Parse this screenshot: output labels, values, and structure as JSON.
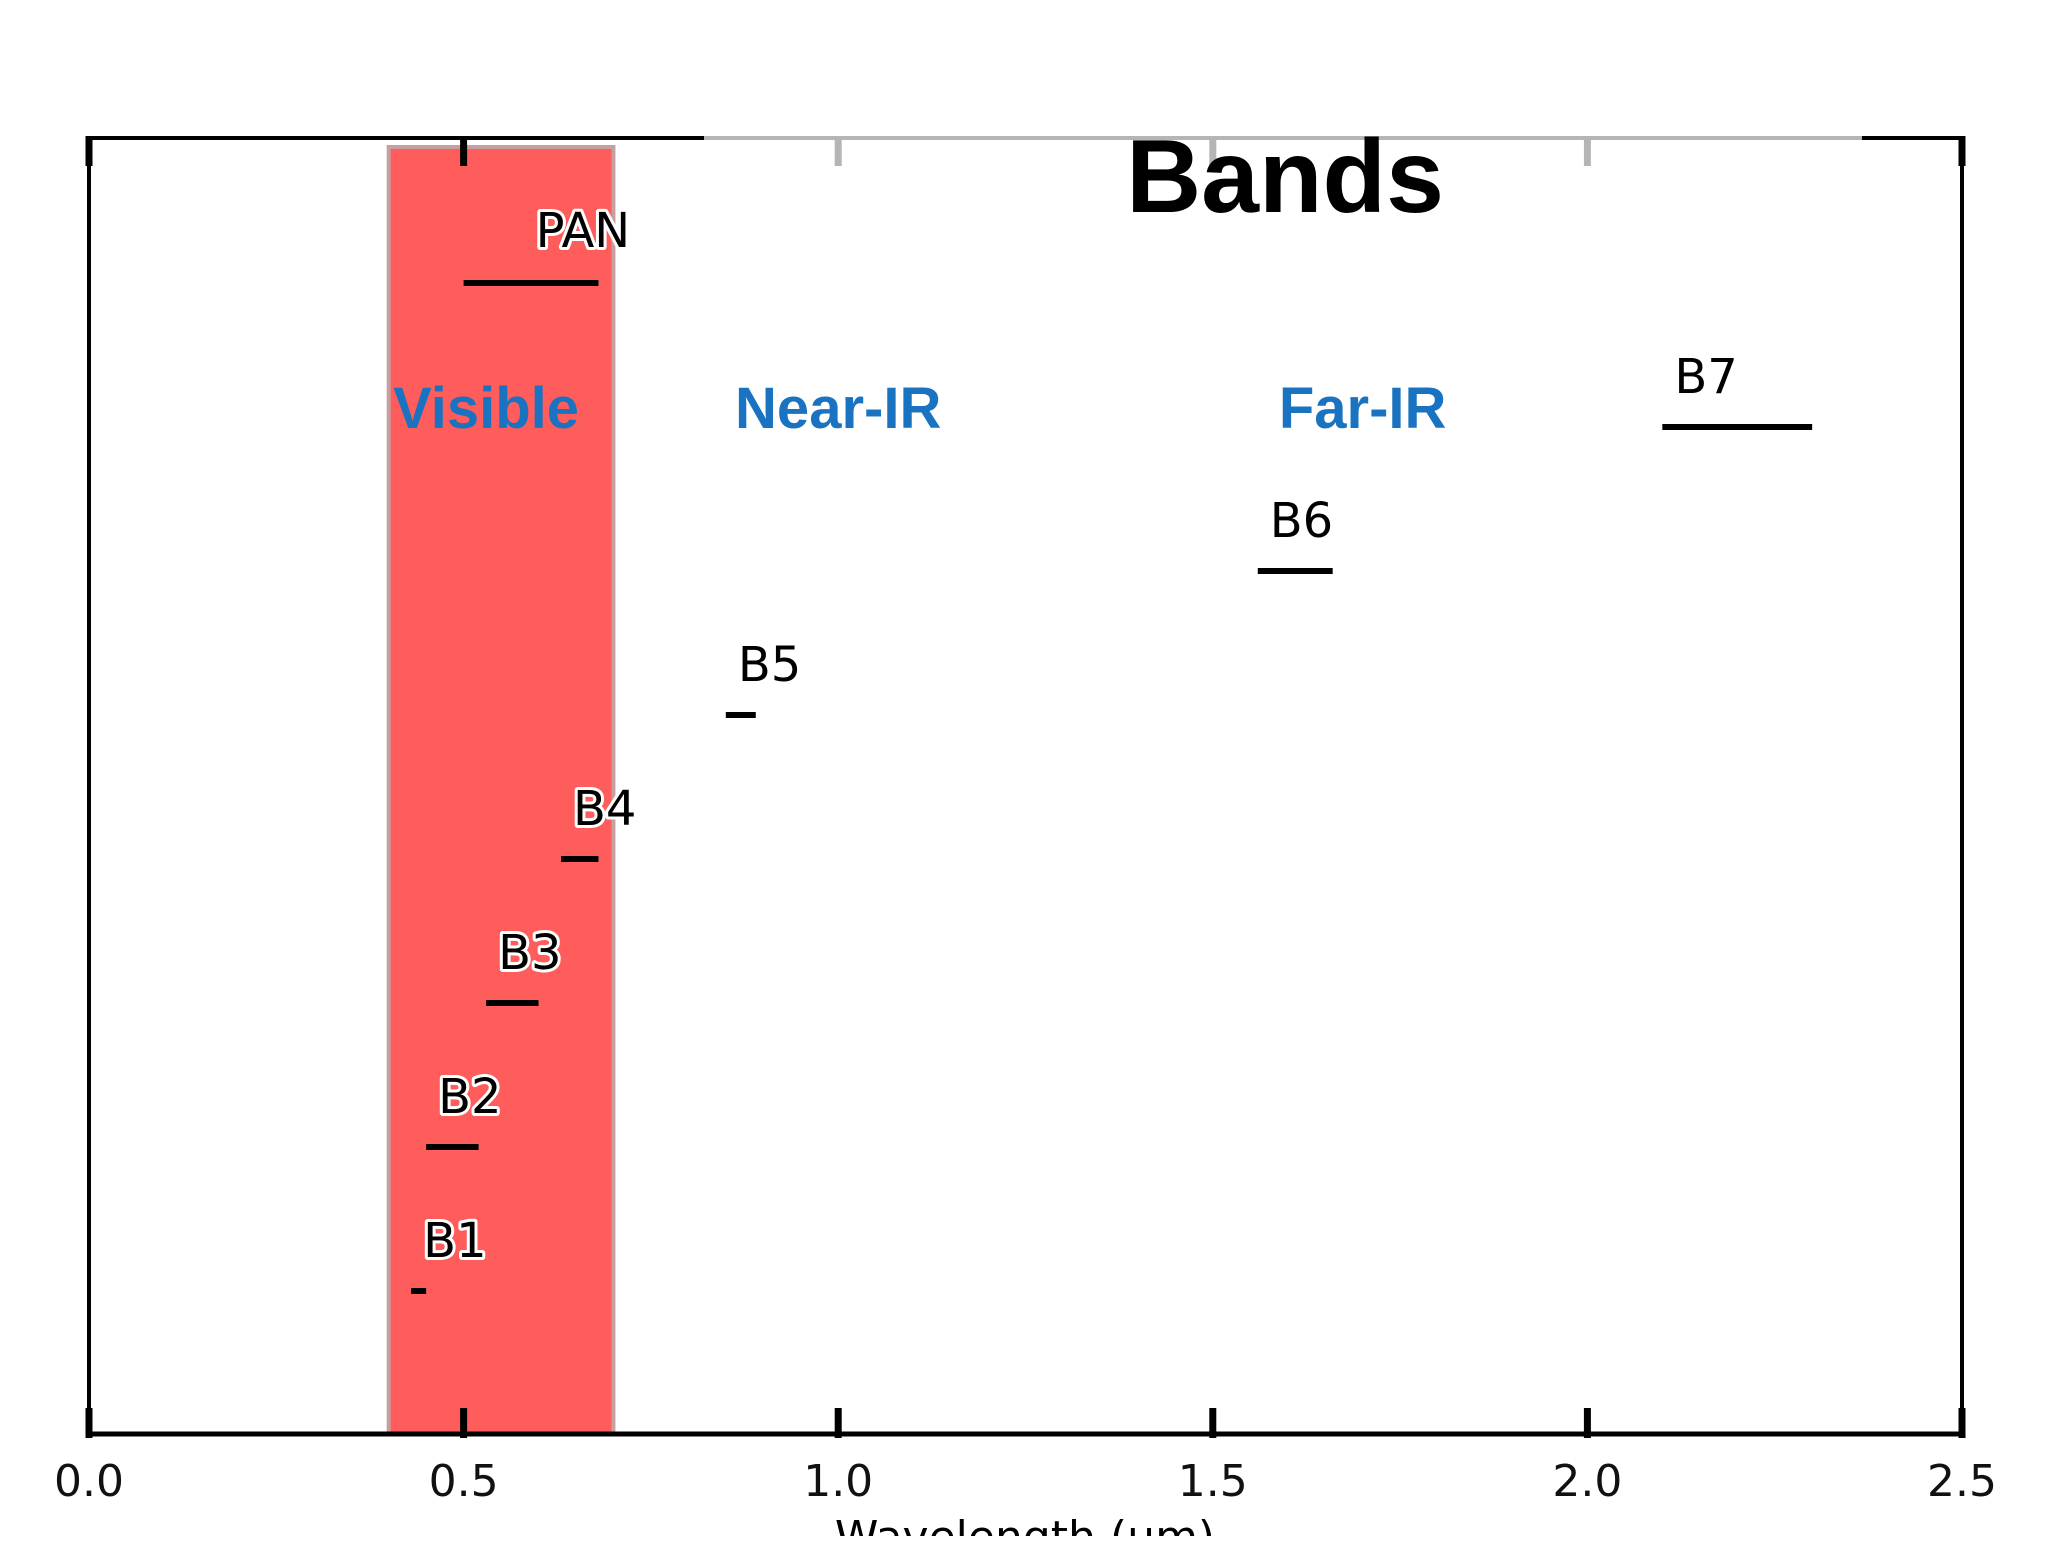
{
  "colors": {
    "visible_band": "#ff5c5c",
    "visible_band_edge": "#c4a0a0",
    "region_label": "#1a73c0",
    "axis": "#000000",
    "grey_tick": "#b5b5b5",
    "band_line": "#000000"
  },
  "chart_data": {
    "type": "bar",
    "title": "Bands",
    "xlabel": "Wavelength (μm)",
    "ylabel": "",
    "xlim": [
      0.0,
      2.5
    ],
    "x_ticks": [
      "0.0",
      "0.5",
      "1.0",
      "1.5",
      "2.0",
      "2.5"
    ],
    "grid": false,
    "shaded_region": {
      "label": "Visible",
      "x_start": 0.4,
      "x_end": 0.7
    },
    "region_labels": [
      {
        "text": "Visible",
        "x": 0.53
      },
      {
        "text": "Near-IR",
        "x": 1.0
      },
      {
        "text": "Far-IR",
        "x": 1.7
      }
    ],
    "bands": [
      {
        "name": "B1",
        "x_start": 0.43,
        "x_end": 0.45
      },
      {
        "name": "B2",
        "x_start": 0.45,
        "x_end": 0.52
      },
      {
        "name": "B3",
        "x_start": 0.53,
        "x_end": 0.6
      },
      {
        "name": "B4",
        "x_start": 0.63,
        "x_end": 0.68
      },
      {
        "name": "B5",
        "x_start": 0.85,
        "x_end": 0.89
      },
      {
        "name": "B6",
        "x_start": 1.56,
        "x_end": 1.66
      },
      {
        "name": "B7",
        "x_start": 2.1,
        "x_end": 2.3
      },
      {
        "name": "PAN",
        "x_start": 0.5,
        "x_end": 0.68
      }
    ]
  }
}
